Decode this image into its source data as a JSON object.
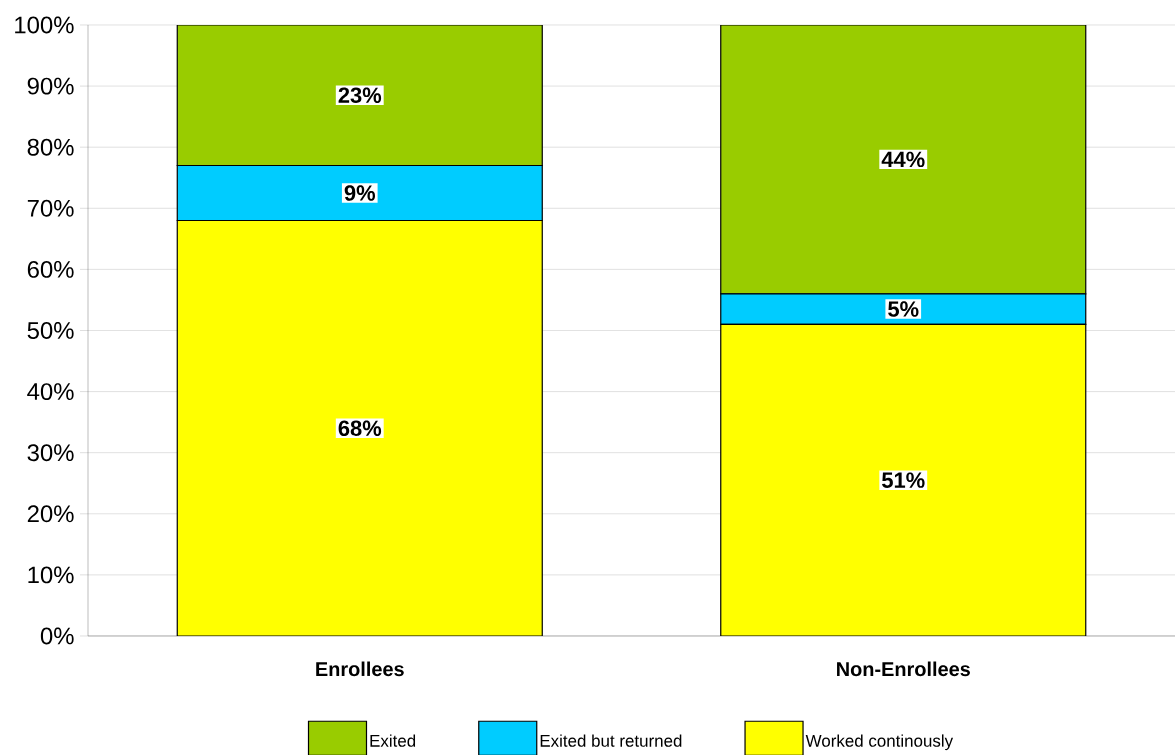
{
  "chart_data": {
    "type": "bar",
    "stacked": true,
    "categories": [
      "Enrollees",
      "Non-Enrollees"
    ],
    "series": [
      {
        "name": "Worked continously",
        "color": "#ffff00",
        "values": [
          68,
          51
        ],
        "value_labels": [
          "68%",
          "51%"
        ]
      },
      {
        "name": "Exited but returned",
        "color": "#00ccff",
        "values": [
          9,
          5
        ],
        "value_labels": [
          "9%",
          "5%"
        ]
      },
      {
        "name": "Exited",
        "color": "#99cc00",
        "values": [
          23,
          44
        ],
        "value_labels": [
          "23%",
          "44%"
        ]
      }
    ],
    "ylim": [
      0,
      100
    ],
    "yticks": [
      {
        "value": 0,
        "label": "0%"
      },
      {
        "value": 10,
        "label": "10%"
      },
      {
        "value": 20,
        "label": "20%"
      },
      {
        "value": 30,
        "label": "30%"
      },
      {
        "value": 40,
        "label": "40%"
      },
      {
        "value": 50,
        "label": "50%"
      },
      {
        "value": 60,
        "label": "60%"
      },
      {
        "value": 70,
        "label": "70%"
      },
      {
        "value": 80,
        "label": "80%"
      },
      {
        "value": 90,
        "label": "90%"
      },
      {
        "value": 100,
        "label": "100%"
      }
    ],
    "grid": "y",
    "legend": "bottom"
  }
}
